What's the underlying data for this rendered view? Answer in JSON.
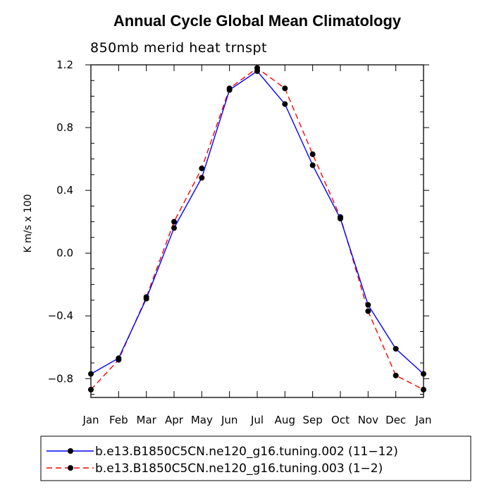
{
  "title": "Annual Cycle Global Mean Climatology",
  "chart_data": {
    "type": "line",
    "title": "Annual Cycle Global Mean Climatology",
    "subtitle": "850mb merid heat trnspt",
    "xlabel": "",
    "ylabel": "K m/s x 100",
    "categories": [
      "Jan",
      "Feb",
      "Mar",
      "Apr",
      "May",
      "Jun",
      "Jul",
      "Aug",
      "Sep",
      "Oct",
      "Nov",
      "Dec",
      "Jan"
    ],
    "ylim": [
      -0.92,
      1.2
    ],
    "yticks": [
      1.2,
      0.8,
      0.4,
      0.0,
      -0.4,
      -0.8
    ],
    "ytick_labels": [
      "1.2",
      "0.8",
      "0.4",
      "0.0",
      "−0.4",
      "−0.8"
    ],
    "legend_position": "bottom",
    "series": [
      {
        "name": "b.e13.B1850C5CN.ne120_g16.tuning.002 (11−12)",
        "color": "#0000ff",
        "dash": "solid",
        "values": [
          -0.77,
          -0.67,
          -0.29,
          0.16,
          0.48,
          1.04,
          1.16,
          0.95,
          0.56,
          0.22,
          -0.33,
          -0.61,
          -0.77
        ]
      },
      {
        "name": "b.e13.B1850C5CN.ne120_g16.tuning.003 (1−2)",
        "color": "#ff0000",
        "dash": "dashed",
        "values": [
          -0.87,
          -0.68,
          -0.28,
          0.2,
          0.54,
          1.05,
          1.18,
          1.05,
          0.63,
          0.23,
          -0.37,
          -0.78,
          -0.87
        ]
      }
    ]
  }
}
